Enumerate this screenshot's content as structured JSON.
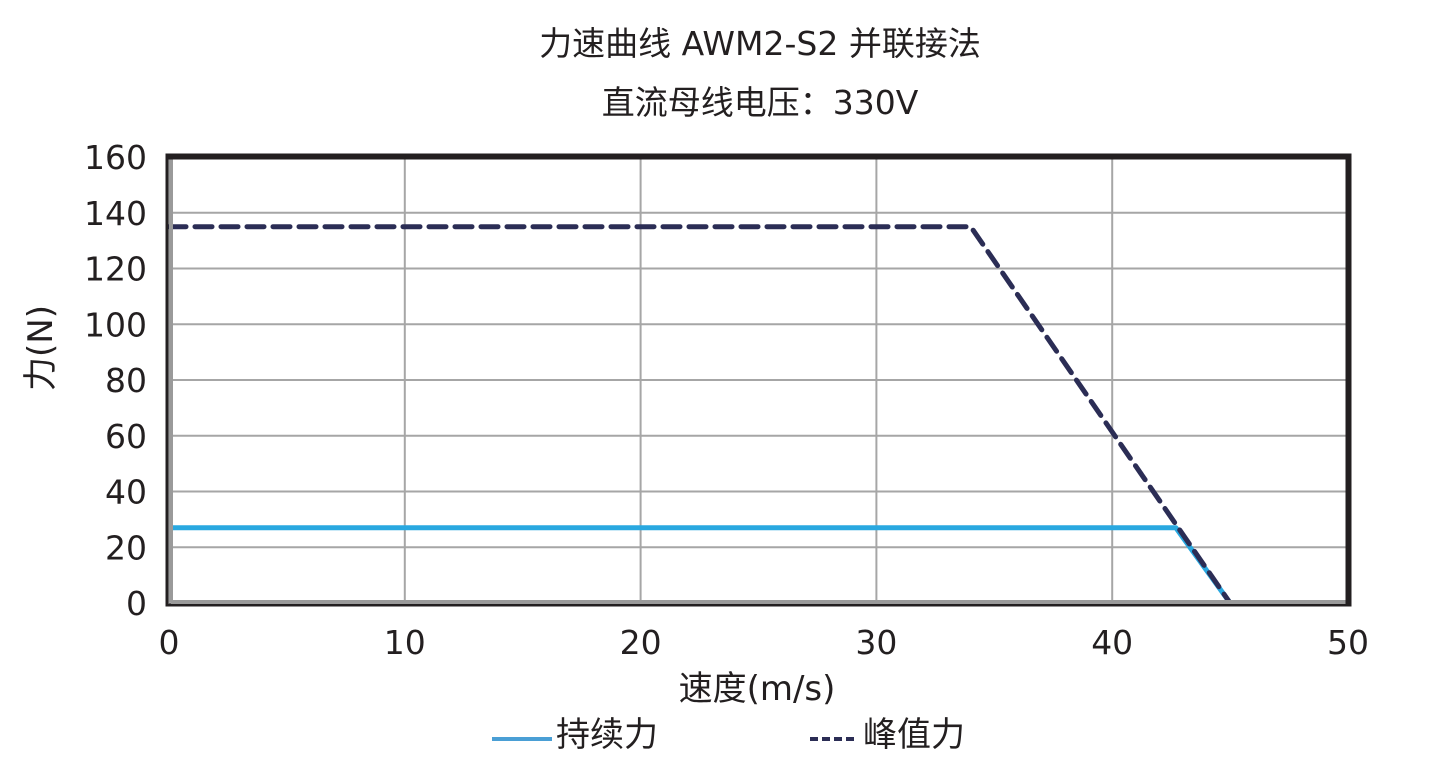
{
  "chart_data": {
    "type": "line",
    "title": "力速曲线 AWM2-S2 并联接法",
    "subtitle": "直流母线电压：330V",
    "xlabel": "速度(m/s)",
    "ylabel": "力(N)",
    "xlim": [
      0,
      50
    ],
    "ylim": [
      0,
      160
    ],
    "xticks": [
      0,
      10,
      20,
      30,
      40,
      50
    ],
    "yticks": [
      0,
      20,
      40,
      60,
      80,
      100,
      120,
      140,
      160
    ],
    "grid": true,
    "legend_position": "bottom",
    "series": [
      {
        "name": "持续力",
        "style": "solid",
        "color": "#29a8e0",
        "x": [
          0,
          42.7,
          45
        ],
        "y": [
          27,
          27,
          0
        ]
      },
      {
        "name": "峰值力",
        "style": "dashed",
        "color": "#2b2d55",
        "x": [
          0,
          34,
          45
        ],
        "y": [
          135,
          135,
          0
        ]
      }
    ]
  },
  "colors": {
    "grid": "#a6a6a6",
    "frame_dark": "#231f20",
    "frame_gray": "#9a9a9a",
    "legend_solid": "#4a9fd5",
    "legend_dashed": "#2b2d55"
  }
}
